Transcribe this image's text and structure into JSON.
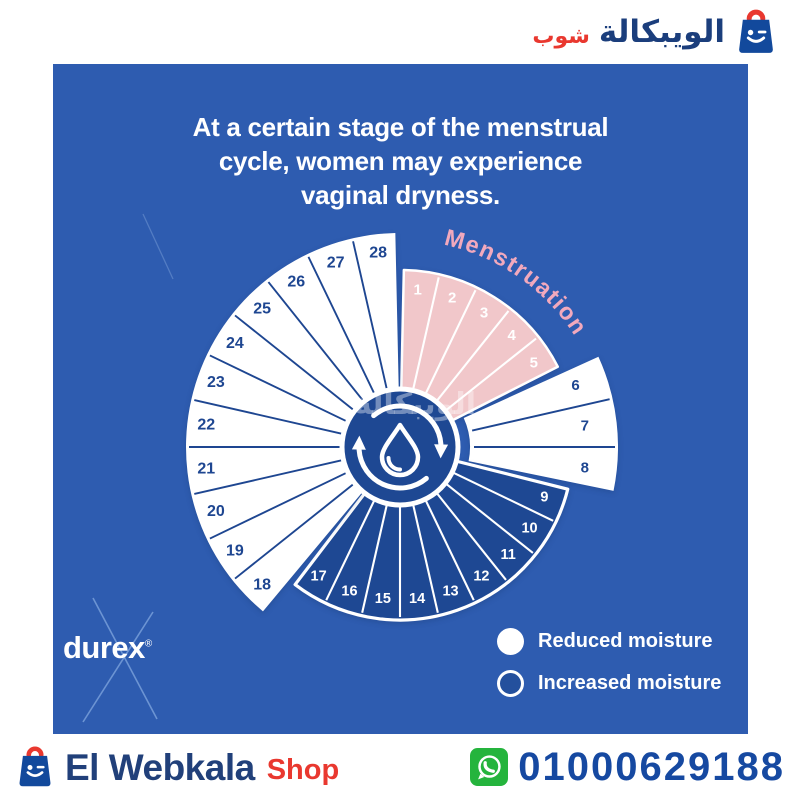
{
  "header": {
    "brand_arabic": "الويبكالة",
    "brand_arabic_suffix": "شوب"
  },
  "infographic": {
    "title_lines": [
      "At a certain stage of the menstrual",
      "cycle, women may experience",
      "vaginal dryness."
    ],
    "menstruation_label": "Menstruation",
    "menstruation_label_color": "#f2a9bd",
    "watermark": "الويبكالة",
    "brand": "durex",
    "brand_reg": "®",
    "background_color": "#2e5cb0",
    "legend": [
      {
        "label": "Reduced moisture",
        "marker": "filled-circle"
      },
      {
        "label": "Increased moisture",
        "marker": "outlined-circle"
      }
    ]
  },
  "chart_data": {
    "type": "radial-cycle",
    "title": "28-day menstrual cycle — vaginal moisture by day",
    "total_days": 28,
    "groups": [
      {
        "name": "menstruation",
        "label": "Menstruation",
        "days": [
          1,
          5
        ],
        "moisture": "menstruation",
        "color": "#f1c7ca",
        "inner_radius": 0,
        "outer_radius": 177,
        "divider_color": "#ffffff",
        "outline_color": "#ffffff",
        "outline_width": 2.5,
        "number_color": "#ffffff",
        "number_radius": 158,
        "number_size": 15
      },
      {
        "name": "reduced-moisture-early",
        "label": "Reduced moisture",
        "days": [
          6,
          8
        ],
        "moisture": "reduced",
        "color": "#ffffff",
        "inner_radius": 70,
        "outer_radius": 218,
        "divider_color": "#1e4691",
        "number_color": "#1e4691",
        "number_radius": 186,
        "number_size": 15
      },
      {
        "name": "increased-moisture",
        "label": "Increased moisture",
        "days": [
          9,
          17
        ],
        "moisture": "increased",
        "color": "#1e4893",
        "inner_radius": 0,
        "outer_radius": 173,
        "divider_color": "#ffffff",
        "outline_color": "#ffffff",
        "outline_width": 3.2,
        "number_color": "#ffffff",
        "number_radius": 153,
        "number_size": 14.5
      },
      {
        "name": "reduced-moisture-late",
        "label": "Reduced moisture",
        "days": [
          18,
          28
        ],
        "moisture": "reduced",
        "color": "#ffffff",
        "inner_radius": 0,
        "outer_radius": 214,
        "divider_color": "#1e4691",
        "number_color": "#1e4691",
        "number_radius": 195,
        "number_size": 16
      }
    ],
    "center_icon": "water-droplet-cycle",
    "center_color": "#1e4893",
    "legend_position": "bottom-right"
  },
  "footer": {
    "brand": "El Webkala",
    "brand_suffix": "Shop",
    "phone": "01000629188",
    "whatsapp_color": "#25b43d"
  }
}
